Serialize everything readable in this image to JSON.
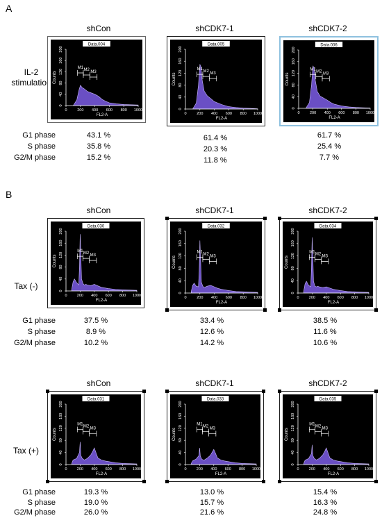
{
  "panels": [
    {
      "letter": "A",
      "columns": [
        "shCon",
        "shCDK7-1",
        "shCDK7-2"
      ],
      "rows": [
        {
          "label_lines": [
            "IL-2",
            "stimulation"
          ],
          "phases": [
            "G1 phase",
            "S phase",
            "G2/M phase"
          ],
          "values": [
            [
              "43.1 %",
              "35.8 %",
              "15.2 %"
            ],
            [
              "61.4 %",
              "20.3 %",
              "11.8 %"
            ],
            [
              "61.7 %",
              "25.4 %",
              "7.7 %"
            ]
          ]
        }
      ]
    },
    {
      "letter": "B",
      "columns": [
        "shCon",
        "shCDK7-1",
        "shCDK7-2"
      ],
      "rows": [
        {
          "label_lines": [
            "Tax (-)"
          ],
          "phases": [
            "G1 phase",
            "S phase",
            "G2/M phase"
          ],
          "values": [
            [
              "37.5 %",
              "8.9 %",
              "10.2 %"
            ],
            [
              "33.4 %",
              "12.6 %",
              "14.2 %"
            ],
            [
              "38.5 %",
              "11.6 %",
              "10.6 %"
            ]
          ]
        },
        {
          "label_lines": [
            "Tax (+)"
          ],
          "phases": [
            "G1 phase",
            "S phase",
            "G2/M phase"
          ],
          "values": [
            [
              "19.3 %",
              "19.0 %",
              "26.0 %"
            ],
            [
              "13.0 %",
              "15.7 %",
              "21.6 %"
            ],
            [
              "15.4 %",
              "16.3 %",
              "24.8 %"
            ]
          ]
        }
      ]
    }
  ],
  "chart_data": [
    {
      "type": "area",
      "title": "Data.004",
      "xlabel": "FL2-A",
      "ylabel": "Counts",
      "xlim": [
        0,
        1000
      ],
      "ylim": [
        0,
        200
      ],
      "x": [
        100,
        150,
        180,
        200,
        220,
        250,
        300,
        350,
        400,
        450,
        500,
        550,
        600,
        700,
        800,
        900,
        1000
      ],
      "y": [
        0,
        20,
        55,
        72,
        65,
        60,
        50,
        45,
        40,
        33,
        22,
        15,
        10,
        6,
        4,
        3,
        2
      ],
      "gates": [
        "M1",
        "M2",
        "M3"
      ],
      "fill": "#6a4fc4"
    },
    {
      "type": "area",
      "title": "Data.005",
      "xlabel": "FL2-A",
      "ylabel": "Counts",
      "xlim": [
        0,
        1000
      ],
      "ylim": [
        0,
        200
      ],
      "x": [
        100,
        150,
        180,
        200,
        215,
        230,
        260,
        300,
        350,
        400,
        450,
        500,
        600,
        700,
        800,
        900,
        1000
      ],
      "y": [
        0,
        20,
        80,
        150,
        140,
        100,
        60,
        45,
        35,
        25,
        20,
        15,
        8,
        5,
        3,
        2,
        1
      ],
      "gates": [
        "M1",
        "M2",
        "M3"
      ],
      "fill": "#6a4fc4"
    },
    {
      "type": "area",
      "title": "Data.006",
      "xlabel": "FL2-A",
      "ylabel": "Counts",
      "xlim": [
        0,
        1000
      ],
      "ylim": [
        0,
        200
      ],
      "x": [
        100,
        150,
        180,
        200,
        215,
        230,
        260,
        300,
        350,
        400,
        450,
        500,
        600,
        700,
        800,
        900,
        1000
      ],
      "y": [
        0,
        20,
        80,
        145,
        140,
        100,
        58,
        42,
        35,
        28,
        20,
        14,
        8,
        5,
        3,
        2,
        1
      ],
      "gates": [
        "M1",
        "M2",
        "M3"
      ],
      "fill": "#6a4fc4"
    },
    {
      "type": "area",
      "title": "Data.030",
      "xlabel": "FL2-A",
      "ylabel": "Counts",
      "xlim": [
        0,
        1000
      ],
      "ylim": [
        0,
        200
      ],
      "x": [
        80,
        100,
        120,
        150,
        180,
        190,
        200,
        210,
        220,
        240,
        260,
        280,
        300,
        350,
        400,
        450,
        500,
        600,
        700,
        800,
        900,
        1000
      ],
      "y": [
        5,
        30,
        40,
        28,
        20,
        80,
        190,
        120,
        40,
        25,
        20,
        22,
        20,
        18,
        22,
        17,
        12,
        8,
        5,
        4,
        3,
        2
      ],
      "gates": [
        "M1",
        "M2",
        "M3"
      ],
      "fill": "#6a4fc4"
    },
    {
      "type": "area",
      "title": "Data.032",
      "xlabel": "FL2-A",
      "ylabel": "Counts",
      "xlim": [
        0,
        1000
      ],
      "ylim": [
        0,
        200
      ],
      "x": [
        80,
        100,
        120,
        150,
        180,
        190,
        200,
        210,
        220,
        240,
        260,
        280,
        300,
        350,
        400,
        450,
        500,
        600,
        700,
        800,
        900,
        1000
      ],
      "y": [
        5,
        25,
        32,
        22,
        20,
        70,
        170,
        110,
        35,
        22,
        18,
        20,
        22,
        25,
        20,
        15,
        12,
        8,
        5,
        4,
        3,
        2
      ],
      "gates": [
        "M1",
        "M2",
        "M3"
      ],
      "fill": "#6a4fc4"
    },
    {
      "type": "area",
      "title": "Data.034",
      "xlabel": "FL2-A",
      "ylabel": "Counts",
      "xlim": [
        0,
        1000
      ],
      "ylim": [
        0,
        200
      ],
      "x": [
        80,
        100,
        120,
        150,
        180,
        190,
        200,
        210,
        220,
        240,
        260,
        280,
        300,
        350,
        400,
        450,
        500,
        600,
        700,
        800,
        900,
        1000
      ],
      "y": [
        5,
        30,
        38,
        25,
        20,
        80,
        180,
        120,
        38,
        22,
        20,
        22,
        20,
        18,
        20,
        16,
        12,
        8,
        5,
        4,
        3,
        2
      ],
      "gates": [
        "M1",
        "M2",
        "M3"
      ],
      "fill": "#6a4fc4"
    },
    {
      "type": "area",
      "title": "Data.031",
      "xlabel": "FL2-A",
      "ylabel": "Counts",
      "xlim": [
        0,
        1000
      ],
      "ylim": [
        0,
        200
      ],
      "x": [
        80,
        100,
        150,
        190,
        200,
        210,
        230,
        260,
        300,
        350,
        380,
        400,
        420,
        450,
        500,
        550,
        600,
        700,
        800,
        900,
        1000
      ],
      "y": [
        3,
        15,
        20,
        40,
        75,
        30,
        20,
        15,
        20,
        32,
        45,
        55,
        42,
        22,
        15,
        12,
        10,
        6,
        4,
        3,
        2
      ],
      "gates": [
        "M1",
        "M2",
        "M3"
      ],
      "fill": "#6a4fc4"
    },
    {
      "type": "area",
      "title": "Data.033",
      "xlabel": "FL2-A",
      "ylabel": "Counts",
      "xlim": [
        0,
        1000
      ],
      "ylim": [
        0,
        200
      ],
      "x": [
        80,
        100,
        150,
        190,
        200,
        210,
        230,
        260,
        300,
        350,
        380,
        400,
        420,
        450,
        500,
        550,
        600,
        700,
        800,
        900,
        1000
      ],
      "y": [
        3,
        12,
        18,
        30,
        55,
        28,
        18,
        14,
        20,
        30,
        42,
        50,
        40,
        22,
        15,
        12,
        10,
        6,
        4,
        3,
        2
      ],
      "gates": [
        "M1",
        "M2",
        "M3"
      ],
      "fill": "#6a4fc4"
    },
    {
      "type": "area",
      "title": "Data.035",
      "xlabel": "FL2-A",
      "ylabel": "Counts",
      "xlim": [
        0,
        1000
      ],
      "ylim": [
        0,
        200
      ],
      "x": [
        80,
        100,
        150,
        190,
        200,
        210,
        230,
        260,
        300,
        350,
        380,
        400,
        420,
        450,
        500,
        550,
        600,
        700,
        800,
        900,
        1000
      ],
      "y": [
        3,
        14,
        20,
        36,
        65,
        30,
        20,
        15,
        20,
        32,
        45,
        55,
        42,
        22,
        15,
        12,
        10,
        6,
        4,
        3,
        2
      ],
      "gates": [
        "M1",
        "M2",
        "M3"
      ],
      "fill": "#6a4fc4"
    }
  ]
}
